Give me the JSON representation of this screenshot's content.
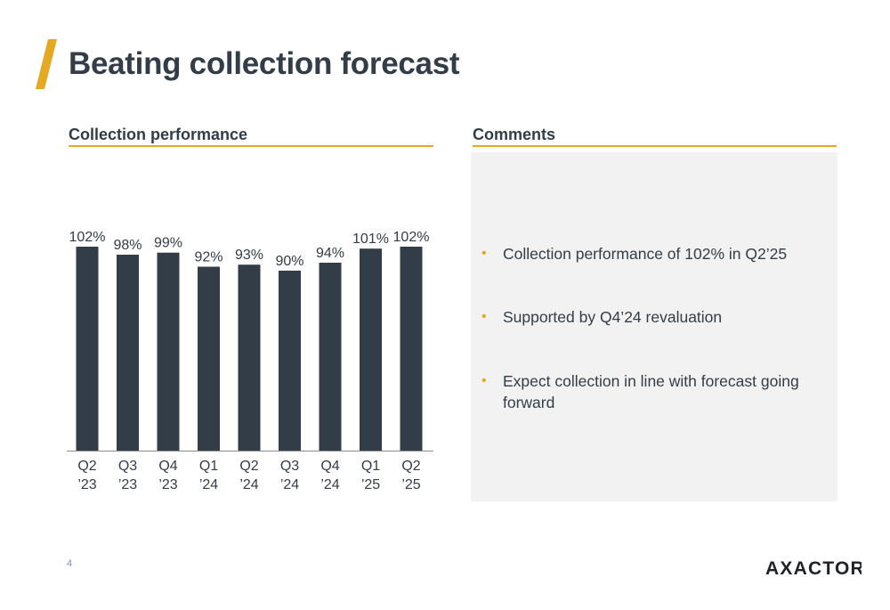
{
  "slide": {
    "title": "Beating collection forecast",
    "page_number": "4",
    "logo_text": "AXACTOR"
  },
  "left_panel": {
    "heading": "Collection performance"
  },
  "right_panel": {
    "heading": "Comments",
    "comments": [
      "Collection performance of 102% in Q2’25",
      "Supported by Q4’24 revaluation",
      "Expect collection in line with forecast going forward"
    ]
  },
  "colors": {
    "bar": "#333d47",
    "accent": "#e5a823",
    "text": "#333d47",
    "panel_bg": "#f2f2f2"
  },
  "chart_data": {
    "type": "bar",
    "categories": [
      [
        "Q2",
        "’23"
      ],
      [
        "Q3",
        "’23"
      ],
      [
        "Q4",
        "’23"
      ],
      [
        "Q1",
        "’24"
      ],
      [
        "Q2",
        "’24"
      ],
      [
        "Q3",
        "’24"
      ],
      [
        "Q4",
        "’24"
      ],
      [
        "Q1",
        "’25"
      ],
      [
        "Q2",
        "’25"
      ]
    ],
    "values": [
      102,
      98,
      99,
      92,
      93,
      90,
      94,
      101,
      102
    ],
    "value_labels": [
      "102%",
      "98%",
      "99%",
      "92%",
      "93%",
      "90%",
      "94%",
      "101%",
      "102%"
    ],
    "unit": "%",
    "ylim": [
      0,
      102
    ],
    "grid": false,
    "legend": "none",
    "title": "",
    "xlabel": "",
    "ylabel": ""
  }
}
